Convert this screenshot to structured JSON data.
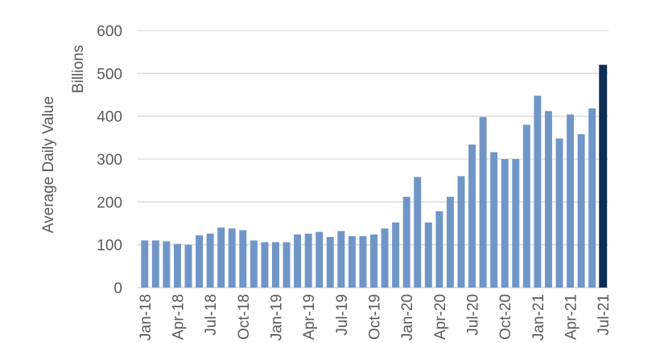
{
  "chart_data": {
    "type": "bar",
    "title": "",
    "ylabel": "Average Daily Value",
    "yunit": "Billions",
    "ylim": [
      0,
      600
    ],
    "yticks": [
      0,
      100,
      200,
      300,
      400,
      500,
      600
    ],
    "grid": true,
    "categories": [
      "Jan-18",
      "Feb-18",
      "Mar-18",
      "Apr-18",
      "May-18",
      "Jun-18",
      "Jul-18",
      "Aug-18",
      "Sep-18",
      "Oct-18",
      "Nov-18",
      "Dec-18",
      "Jan-19",
      "Feb-19",
      "Mar-19",
      "Apr-19",
      "May-19",
      "Jun-19",
      "Jul-19",
      "Aug-19",
      "Sep-19",
      "Oct-19",
      "Nov-19",
      "Dec-19",
      "Jan-20",
      "Feb-20",
      "Mar-20",
      "Apr-20",
      "May-20",
      "Jun-20",
      "Jul-20",
      "Aug-20",
      "Sep-20",
      "Oct-20",
      "Nov-20",
      "Dec-20",
      "Jan-21",
      "Feb-21",
      "Mar-21",
      "Apr-21",
      "May-21",
      "Jun-21",
      "Jul-21"
    ],
    "xtick_labels": [
      "Jan-18",
      "Apr-18",
      "Jul-18",
      "Oct-18",
      "Jan-19",
      "Apr-19",
      "Jul-19",
      "Oct-19",
      "Jan-20",
      "Apr-20",
      "Jul-20",
      "Oct-20",
      "Jan-21",
      "Apr-21",
      "Jul-21"
    ],
    "values": [
      110,
      110,
      108,
      102,
      100,
      122,
      126,
      140,
      138,
      134,
      110,
      106,
      106,
      106,
      124,
      126,
      130,
      118,
      132,
      120,
      120,
      124,
      138,
      152,
      212,
      258,
      152,
      178,
      212,
      260,
      334,
      398,
      316,
      300,
      300,
      380,
      448,
      412,
      348,
      404,
      358,
      418,
      520
    ],
    "colors": {
      "bar": "#7096c8",
      "highlight": "#0d2e55",
      "grid": "#d9d9d9",
      "text": "#595959"
    },
    "highlight_index": 42
  }
}
